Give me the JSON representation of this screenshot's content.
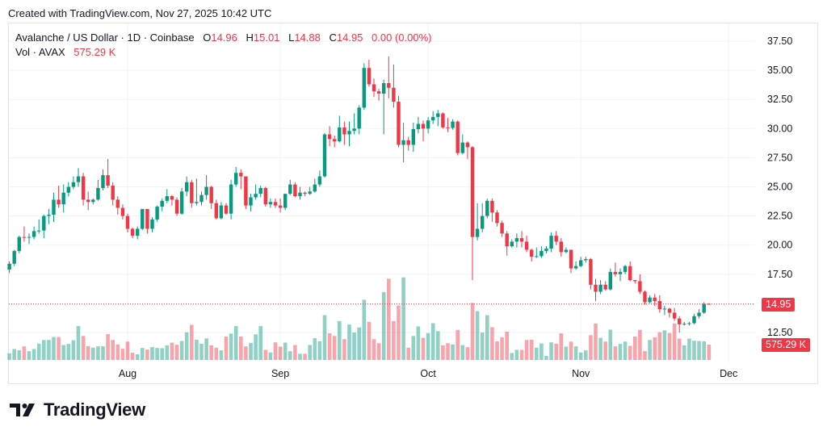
{
  "header": {
    "created_with": "Created with TradingView.com, Nov 27, 2025 10:42 UTC"
  },
  "legend": {
    "symbol": "Avalanche / US Dollar · 1D · Coinbase",
    "o_label": "O",
    "o_value": "14.96",
    "h_label": "H",
    "h_value": "15.01",
    "l_label": "L",
    "l_value": "14.88",
    "c_label": "C",
    "c_value": "14.95",
    "change": "0.00 (0.00%)",
    "vol_label": "Vol · AVAX",
    "vol_value": "575.29 K"
  },
  "price_tag": "14.95",
  "volume_tag": "575.29 K",
  "footer": {
    "brand": "TradingView",
    "logo_icon": "tradingview-logo-icon"
  },
  "colors": {
    "up": "#089981",
    "down": "#f23645",
    "grid": "#f0f3fa"
  },
  "chart_data": {
    "type": "candlestick",
    "title": "Avalanche / US Dollar · 1D · Coinbase",
    "grid": true,
    "ylim": [
      11.5,
      38.5
    ],
    "y_ticks": [
      "37.50",
      "35.00",
      "32.50",
      "30.00",
      "27.50",
      "25.00",
      "22.50",
      "20.00",
      "17.50",
      "12.50"
    ],
    "y_tick_values": [
      37.5,
      35,
      32.5,
      30,
      27.5,
      25,
      22.5,
      20,
      17.5,
      12.5
    ],
    "x_ticks": [
      "Aug",
      "Sep",
      "Oct",
      "Nov",
      "Dec"
    ],
    "x_tick_dates": [
      "2025-08-01",
      "2025-09-01",
      "2025-10-01",
      "2025-11-01",
      "2025-12-01"
    ],
    "last_price": 14.95,
    "columns": [
      "date",
      "open",
      "high",
      "low",
      "close",
      "volume_k"
    ],
    "candles": [
      [
        "2025-07-08",
        17.9,
        18.6,
        17.6,
        18.4,
        250
      ],
      [
        "2025-07-09",
        18.4,
        19.6,
        18.2,
        19.5,
        410
      ],
      [
        "2025-07-10",
        19.5,
        20.8,
        19.3,
        20.7,
        360
      ],
      [
        "2025-07-11",
        20.7,
        21.6,
        20.3,
        20.65,
        510
      ],
      [
        "2025-07-12",
        20.65,
        21.0,
        20.1,
        20.7,
        330
      ],
      [
        "2025-07-13",
        20.7,
        21.6,
        20.5,
        21.2,
        410
      ],
      [
        "2025-07-14",
        21.2,
        22.2,
        21.0,
        21.25,
        610
      ],
      [
        "2025-07-15",
        21.25,
        22.6,
        20.6,
        22.5,
        750
      ],
      [
        "2025-07-16",
        22.5,
        23.1,
        21.8,
        22.6,
        750
      ],
      [
        "2025-07-17",
        22.6,
        24.5,
        22.0,
        23.9,
        860
      ],
      [
        "2025-07-18",
        23.9,
        25.1,
        23.2,
        23.5,
        860
      ],
      [
        "2025-07-19",
        23.5,
        25.2,
        22.8,
        24.5,
        560
      ],
      [
        "2025-07-20",
        24.5,
        25.4,
        24.2,
        25.0,
        600
      ],
      [
        "2025-07-21",
        25.0,
        25.9,
        24.8,
        25.4,
        740
      ],
      [
        "2025-07-22",
        25.4,
        26.6,
        25.0,
        25.9,
        1270
      ],
      [
        "2025-07-23",
        25.9,
        26.2,
        23.4,
        23.9,
        900
      ],
      [
        "2025-07-24",
        23.9,
        24.6,
        23.0,
        23.7,
        520
      ],
      [
        "2025-07-25",
        23.7,
        24.0,
        23.5,
        23.9,
        460
      ],
      [
        "2025-07-26",
        23.9,
        25.6,
        23.8,
        24.9,
        510
      ],
      [
        "2025-07-27",
        24.9,
        26.5,
        24.7,
        26.0,
        510
      ],
      [
        "2025-07-28",
        26.0,
        27.4,
        24.9,
        25.1,
        970
      ],
      [
        "2025-07-29",
        25.1,
        25.4,
        23.4,
        23.9,
        750
      ],
      [
        "2025-07-30",
        23.9,
        24.2,
        22.6,
        23.2,
        580
      ],
      [
        "2025-07-31",
        23.2,
        23.5,
        22.2,
        22.5,
        420
      ],
      [
        "2025-08-01",
        22.5,
        22.7,
        21.1,
        21.4,
        690
      ],
      [
        "2025-08-02",
        21.4,
        21.5,
        20.6,
        20.8,
        270
      ],
      [
        "2025-08-03",
        20.8,
        21.6,
        20.5,
        21.4,
        210
      ],
      [
        "2025-08-04",
        21.4,
        23.1,
        21.3,
        23.1,
        450
      ],
      [
        "2025-08-05",
        23.1,
        23.1,
        21.0,
        21.4,
        390
      ],
      [
        "2025-08-06",
        21.4,
        22.4,
        21.1,
        22.2,
        480
      ],
      [
        "2025-08-07",
        22.2,
        23.4,
        22.0,
        23.3,
        450
      ],
      [
        "2025-08-08",
        23.3,
        24.0,
        22.9,
        23.8,
        440
      ],
      [
        "2025-08-09",
        23.8,
        24.8,
        23.6,
        24.2,
        550
      ],
      [
        "2025-08-10",
        24.2,
        24.3,
        23.4,
        23.9,
        650
      ],
      [
        "2025-08-11",
        23.9,
        24.1,
        22.5,
        22.7,
        570
      ],
      [
        "2025-08-12",
        22.7,
        24.9,
        22.6,
        24.6,
        710
      ],
      [
        "2025-08-13",
        24.6,
        25.9,
        24.2,
        25.4,
        1040
      ],
      [
        "2025-08-14",
        25.4,
        25.6,
        23.2,
        23.6,
        1320
      ],
      [
        "2025-08-15",
        23.6,
        25.7,
        23.4,
        23.7,
        760
      ],
      [
        "2025-08-16",
        23.7,
        24.6,
        23.4,
        24.3,
        610
      ],
      [
        "2025-08-17",
        24.3,
        26.0,
        23.9,
        25.0,
        810
      ],
      [
        "2025-08-18",
        25.0,
        25.1,
        23.1,
        23.6,
        550
      ],
      [
        "2025-08-19",
        23.6,
        23.9,
        22.2,
        22.3,
        460
      ],
      [
        "2025-08-20",
        22.3,
        23.7,
        22.2,
        23.4,
        360
      ],
      [
        "2025-08-21",
        23.4,
        23.6,
        22.6,
        22.7,
        880
      ],
      [
        "2025-08-22",
        22.7,
        25.6,
        22.2,
        25.2,
        990
      ],
      [
        "2025-08-23",
        25.2,
        26.7,
        25.0,
        26.2,
        1270
      ],
      [
        "2025-08-24",
        26.2,
        26.5,
        24.8,
        25.9,
        880
      ],
      [
        "2025-08-25",
        25.9,
        25.9,
        23.1,
        23.4,
        510
      ],
      [
        "2025-08-26",
        23.4,
        24.4,
        22.9,
        24.1,
        640
      ],
      [
        "2025-08-27",
        24.1,
        25.2,
        23.9,
        24.4,
        960
      ],
      [
        "2025-08-28",
        24.4,
        25.1,
        24.1,
        24.9,
        1270
      ],
      [
        "2025-08-29",
        24.9,
        25.0,
        23.3,
        23.5,
        380
      ],
      [
        "2025-08-30",
        23.5,
        24.0,
        23.2,
        23.7,
        280
      ],
      [
        "2025-08-31",
        23.7,
        24.0,
        23.2,
        23.4,
        660
      ],
      [
        "2025-09-01",
        23.4,
        24.0,
        22.8,
        23.2,
        500
      ],
      [
        "2025-09-02",
        23.2,
        24.4,
        23.0,
        24.4,
        650
      ],
      [
        "2025-09-03",
        24.4,
        25.6,
        24.3,
        25.2,
        330
      ],
      [
        "2025-09-04",
        25.2,
        25.4,
        24.1,
        24.2,
        560
      ],
      [
        "2025-09-05",
        24.2,
        25.0,
        23.9,
        24.5,
        230
      ],
      [
        "2025-09-06",
        24.5,
        24.6,
        24.2,
        24.4,
        230
      ],
      [
        "2025-09-07",
        24.4,
        25.0,
        24.3,
        24.6,
        560
      ],
      [
        "2025-09-08",
        24.6,
        25.7,
        24.5,
        25.2,
        820
      ],
      [
        "2025-09-09",
        25.2,
        26.4,
        25.0,
        25.9,
        700
      ],
      [
        "2025-09-10",
        25.9,
        29.6,
        25.8,
        29.5,
        1680
      ],
      [
        "2025-09-11",
        29.5,
        30.2,
        28.5,
        29.1,
        1000
      ],
      [
        "2025-09-12",
        29.1,
        29.4,
        28.4,
        28.9,
        900
      ],
      [
        "2025-09-13",
        28.9,
        31.1,
        28.8,
        30.1,
        1460
      ],
      [
        "2025-09-14",
        30.1,
        30.6,
        28.6,
        29.5,
        780
      ],
      [
        "2025-09-15",
        29.5,
        30.6,
        28.5,
        29.8,
        1330
      ],
      [
        "2025-09-16",
        29.8,
        31.3,
        29.5,
        30.0,
        1030
      ],
      [
        "2025-09-17",
        30.0,
        32.0,
        29.5,
        31.8,
        1220
      ],
      [
        "2025-09-18",
        31.8,
        35.6,
        31.6,
        35.2,
        2260
      ],
      [
        "2025-09-19",
        35.2,
        35.9,
        33.6,
        33.8,
        1430
      ],
      [
        "2025-09-20",
        33.8,
        34.3,
        32.7,
        33.2,
        780
      ],
      [
        "2025-09-21",
        33.2,
        33.4,
        32.4,
        33.0,
        630
      ],
      [
        "2025-09-22",
        33.0,
        34.2,
        29.5,
        33.9,
        2550
      ],
      [
        "2025-09-23",
        33.9,
        36.2,
        32.6,
        33.5,
        3050
      ],
      [
        "2025-09-24",
        33.5,
        35.5,
        31.8,
        32.3,
        1460
      ],
      [
        "2025-09-25",
        32.3,
        32.8,
        28.4,
        28.6,
        2040
      ],
      [
        "2025-09-26",
        28.6,
        30.5,
        27.1,
        29.0,
        3100
      ],
      [
        "2025-09-27",
        29.0,
        29.3,
        28.1,
        28.6,
        460
      ],
      [
        "2025-09-28",
        28.6,
        30.5,
        28.0,
        29.95,
        900
      ],
      [
        "2025-09-29",
        29.95,
        31.0,
        29.6,
        30.4,
        1260
      ],
      [
        "2025-09-30",
        30.4,
        30.7,
        28.9,
        30.0,
        830
      ],
      [
        "2025-10-01",
        30.0,
        31.0,
        29.6,
        30.7,
        1010
      ],
      [
        "2025-10-02",
        30.7,
        31.5,
        30.4,
        31.0,
        1380
      ],
      [
        "2025-10-03",
        31.0,
        31.6,
        30.2,
        31.3,
        1080
      ],
      [
        "2025-10-04",
        31.3,
        31.4,
        30.0,
        30.1,
        550
      ],
      [
        "2025-10-05",
        30.1,
        30.9,
        29.7,
        30.05,
        630
      ],
      [
        "2025-10-06",
        30.05,
        30.8,
        29.9,
        30.6,
        580
      ],
      [
        "2025-10-07",
        30.6,
        30.7,
        27.7,
        27.9,
        1130
      ],
      [
        "2025-10-08",
        27.9,
        29.5,
        27.8,
        28.8,
        560
      ],
      [
        "2025-10-09",
        28.8,
        28.9,
        27.4,
        28.4,
        480
      ],
      [
        "2025-10-10",
        28.4,
        28.5,
        17.0,
        20.7,
        2140
      ],
      [
        "2025-10-11",
        20.7,
        23.6,
        20.4,
        21.4,
        1830
      ],
      [
        "2025-10-12",
        21.4,
        23.6,
        21.1,
        22.5,
        1030
      ],
      [
        "2025-10-13",
        22.5,
        24.0,
        22.3,
        23.8,
        1680
      ],
      [
        "2025-10-14",
        23.8,
        24.0,
        22.0,
        22.8,
        1230
      ],
      [
        "2025-10-15",
        22.8,
        23.0,
        21.6,
        21.9,
        700
      ],
      [
        "2025-10-16",
        21.9,
        22.1,
        20.7,
        21.0,
        850
      ],
      [
        "2025-10-17",
        21.0,
        21.2,
        19.1,
        19.9,
        1060
      ],
      [
        "2025-10-18",
        19.9,
        20.5,
        19.8,
        20.3,
        260
      ],
      [
        "2025-10-19",
        20.3,
        21.0,
        19.8,
        20.6,
        380
      ],
      [
        "2025-10-20",
        20.6,
        21.2,
        19.8,
        20.3,
        380
      ],
      [
        "2025-10-21",
        20.3,
        20.8,
        19.4,
        19.6,
        750
      ],
      [
        "2025-10-22",
        19.6,
        19.7,
        18.6,
        19.0,
        760
      ],
      [
        "2025-10-23",
        19.0,
        19.8,
        18.9,
        19.05,
        460
      ],
      [
        "2025-10-24",
        19.05,
        19.9,
        18.9,
        19.5,
        620
      ],
      [
        "2025-10-25",
        19.5,
        19.9,
        19.3,
        19.7,
        150
      ],
      [
        "2025-10-26",
        19.7,
        21.1,
        19.4,
        20.8,
        660
      ],
      [
        "2025-10-27",
        20.8,
        21.2,
        20.0,
        20.3,
        610
      ],
      [
        "2025-10-28",
        20.3,
        20.6,
        19.0,
        19.4,
        1000
      ],
      [
        "2025-10-29",
        19.4,
        19.8,
        19.3,
        19.6,
        500
      ],
      [
        "2025-10-30",
        19.6,
        19.6,
        17.6,
        18.0,
        690
      ],
      [
        "2025-10-31",
        18.0,
        18.6,
        17.9,
        18.2,
        510
      ],
      [
        "2025-11-01",
        18.2,
        19.0,
        18.1,
        18.7,
        280
      ],
      [
        "2025-11-02",
        18.7,
        19.0,
        18.5,
        18.8,
        360
      ],
      [
        "2025-11-03",
        18.8,
        18.9,
        16.2,
        16.6,
        930
      ],
      [
        "2025-11-04",
        16.6,
        17.1,
        15.2,
        16.0,
        1370
      ],
      [
        "2025-11-05",
        16.0,
        17.0,
        15.8,
        16.6,
        830
      ],
      [
        "2025-11-06",
        16.6,
        16.9,
        16.1,
        16.2,
        690
      ],
      [
        "2025-11-07",
        16.2,
        18.0,
        16.1,
        17.7,
        1140
      ],
      [
        "2025-11-08",
        17.7,
        18.5,
        17.3,
        17.5,
        510
      ],
      [
        "2025-11-09",
        17.5,
        18.0,
        16.9,
        17.7,
        600
      ],
      [
        "2025-11-10",
        17.7,
        18.3,
        17.5,
        18.2,
        690
      ],
      [
        "2025-11-11",
        18.2,
        18.6,
        16.9,
        17.0,
        530
      ],
      [
        "2025-11-12",
        17.0,
        17.0,
        16.7,
        16.9,
        880
      ],
      [
        "2025-11-13",
        16.9,
        17.5,
        15.8,
        16.0,
        1130
      ],
      [
        "2025-11-14",
        16.0,
        16.1,
        14.9,
        15.1,
        330
      ],
      [
        "2025-11-15",
        15.1,
        15.7,
        15.0,
        15.5,
        750
      ],
      [
        "2025-11-16",
        15.5,
        15.8,
        14.8,
        15.2,
        850
      ],
      [
        "2025-11-17",
        15.2,
        15.7,
        14.2,
        14.5,
        1040
      ],
      [
        "2025-11-18",
        14.5,
        14.8,
        14.0,
        14.55,
        1110
      ],
      [
        "2025-11-19",
        14.55,
        14.6,
        13.8,
        14.2,
        1010
      ],
      [
        "2025-11-20",
        14.2,
        14.6,
        13.5,
        13.7,
        1370
      ],
      [
        "2025-11-21",
        13.7,
        13.9,
        12.5,
        13.2,
        800
      ],
      [
        "2025-11-22",
        13.2,
        13.4,
        13.1,
        13.25,
        550
      ],
      [
        "2025-11-23",
        13.25,
        13.4,
        13.1,
        13.3,
        800
      ],
      [
        "2025-11-24",
        13.3,
        14.1,
        13.2,
        13.9,
        720
      ],
      [
        "2025-11-25",
        13.9,
        14.5,
        13.7,
        14.2,
        710
      ],
      [
        "2025-11-26",
        14.2,
        15.1,
        14.1,
        14.96,
        700
      ],
      [
        "2025-11-27",
        14.96,
        15.01,
        14.88,
        14.95,
        575.29
      ]
    ]
  }
}
